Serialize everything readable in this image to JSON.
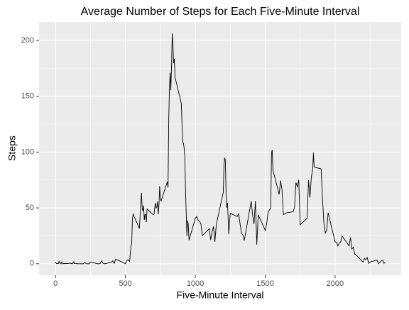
{
  "chart_data": {
    "type": "line",
    "title": "Average Number of Steps for Each Five-Minute Interval",
    "x_label": "Five-Minute Interval",
    "y_label": "Steps",
    "x": [
      0,
      5,
      10,
      15,
      20,
      25,
      30,
      35,
      40,
      45,
      50,
      55,
      100,
      105,
      110,
      115,
      120,
      125,
      130,
      135,
      140,
      145,
      150,
      155,
      200,
      210,
      220,
      230,
      240,
      250,
      300,
      310,
      320,
      330,
      340,
      350,
      400,
      410,
      420,
      430,
      440,
      450,
      500,
      510,
      520,
      530,
      540,
      545,
      550,
      555,
      600,
      610,
      615,
      620,
      625,
      630,
      635,
      640,
      645,
      650,
      655,
      700,
      705,
      710,
      715,
      720,
      725,
      730,
      735,
      740,
      745,
      750,
      755,
      800,
      805,
      810,
      815,
      820,
      825,
      830,
      835,
      840,
      845,
      850,
      855,
      900,
      905,
      910,
      915,
      920,
      925,
      930,
      935,
      940,
      945,
      950,
      955,
      1000,
      1010,
      1020,
      1030,
      1040,
      1050,
      1100,
      1110,
      1120,
      1130,
      1140,
      1150,
      1200,
      1205,
      1210,
      1215,
      1220,
      1225,
      1230,
      1240,
      1245,
      1250,
      1300,
      1310,
      1320,
      1330,
      1340,
      1350,
      1400,
      1410,
      1420,
      1430,
      1440,
      1450,
      1500,
      1510,
      1520,
      1530,
      1540,
      1545,
      1550,
      1555,
      1600,
      1610,
      1620,
      1630,
      1640,
      1650,
      1700,
      1710,
      1720,
      1730,
      1740,
      1750,
      1800,
      1810,
      1820,
      1830,
      1840,
      1845,
      1850,
      1900,
      1910,
      1920,
      1930,
      1940,
      1950,
      2000,
      2010,
      2020,
      2030,
      2040,
      2050,
      2100,
      2110,
      2120,
      2130,
      2140,
      2150,
      2200,
      2210,
      2220,
      2230,
      2240,
      2250,
      2300,
      2310,
      2320,
      2330,
      2340,
      2350,
      2355
    ],
    "series": [
      {
        "name": "Steps",
        "color": "#000000",
        "values": [
          1.7,
          0.3,
          0.1,
          0.2,
          0.1,
          2.1,
          0.5,
          0.9,
          0,
          1.5,
          0.3,
          0.1,
          0.3,
          0.7,
          0.2,
          0.3,
          0,
          1.1,
          1.8,
          0.2,
          0.2,
          0.4,
          0.3,
          0,
          0,
          1.1,
          0,
          0,
          0,
          1.5,
          0,
          0,
          0.2,
          2.6,
          0.5,
          0,
          1.2,
          2.6,
          0.3,
          4.1,
          3.5,
          3.1,
          0,
          3.0,
          3.3,
          2.1,
          16,
          18,
          39.5,
          44.5,
          31.5,
          53.8,
          63.5,
          49.9,
          47.1,
          52.2,
          39.3,
          44.0,
          44.2,
          37.4,
          49.0,
          43.8,
          44.4,
          50.5,
          54.5,
          49.9,
          51.0,
          55.7,
          44.3,
          52.3,
          69.5,
          57.8,
          56.2,
          73.4,
          68.2,
          129.4,
          157.5,
          171.2,
          155.4,
          177.3,
          206.2,
          195.9,
          179.6,
          183.4,
          167.0,
          143.5,
          124.0,
          109.1,
          108.1,
          103.7,
          96.0,
          66.2,
          45.2,
          24.8,
          38.8,
          35.0,
          21.1,
          40.6,
          42.4,
          38.9,
          38.0,
          35.9,
          25.1,
          31.4,
          21.3,
          28.4,
          33.3,
          19.6,
          35.1,
          63.9,
          87.6,
          94.8,
          92.8,
          63.4,
          50.2,
          54.5,
          26.5,
          37.7,
          45.1,
          42.3,
          44.8,
          36.1,
          27.3,
          25.8,
          20.7,
          56.0,
          43.6,
          35.5,
          56.2,
          17.1,
          43.8,
          30.0,
          35.5,
          45.7,
          48.1,
          50.0,
          98.7,
          102.1,
          84.0,
          62.1,
          74.5,
          66.4,
          44.0,
          44.7,
          45.5,
          46.6,
          50.7,
          72.7,
          68.9,
          75.1,
          34.8,
          40.7,
          74.7,
          59.3,
          77.4,
          85.3,
          99.5,
          86.6,
          84.9,
          58.0,
          36.1,
          27.4,
          30.2,
          45.7,
          19.6,
          19.3,
          15.9,
          18.6,
          19.6,
          25.0,
          15.9,
          23.5,
          13.2,
          14.7,
          8.7,
          7.8,
          1.6,
          4.8,
          3.7,
          5.6,
          0.3,
          1.6,
          3.3,
          0,
          1.0,
          2.6,
          3.3,
          0.2,
          1.1
        ]
      }
    ],
    "xlim": [
      -117.75,
      2472.75
    ],
    "xticks": [
      0,
      500,
      1000,
      1500,
      2000
    ],
    "xminor_ticks": [
      250,
      750,
      1250,
      1750,
      2250
    ],
    "ylim": [
      -10.3,
      216.5
    ],
    "yticks": [
      0,
      50,
      100,
      150,
      200
    ],
    "yminor_ticks": [
      25,
      75,
      125,
      175
    ],
    "grid": true
  }
}
